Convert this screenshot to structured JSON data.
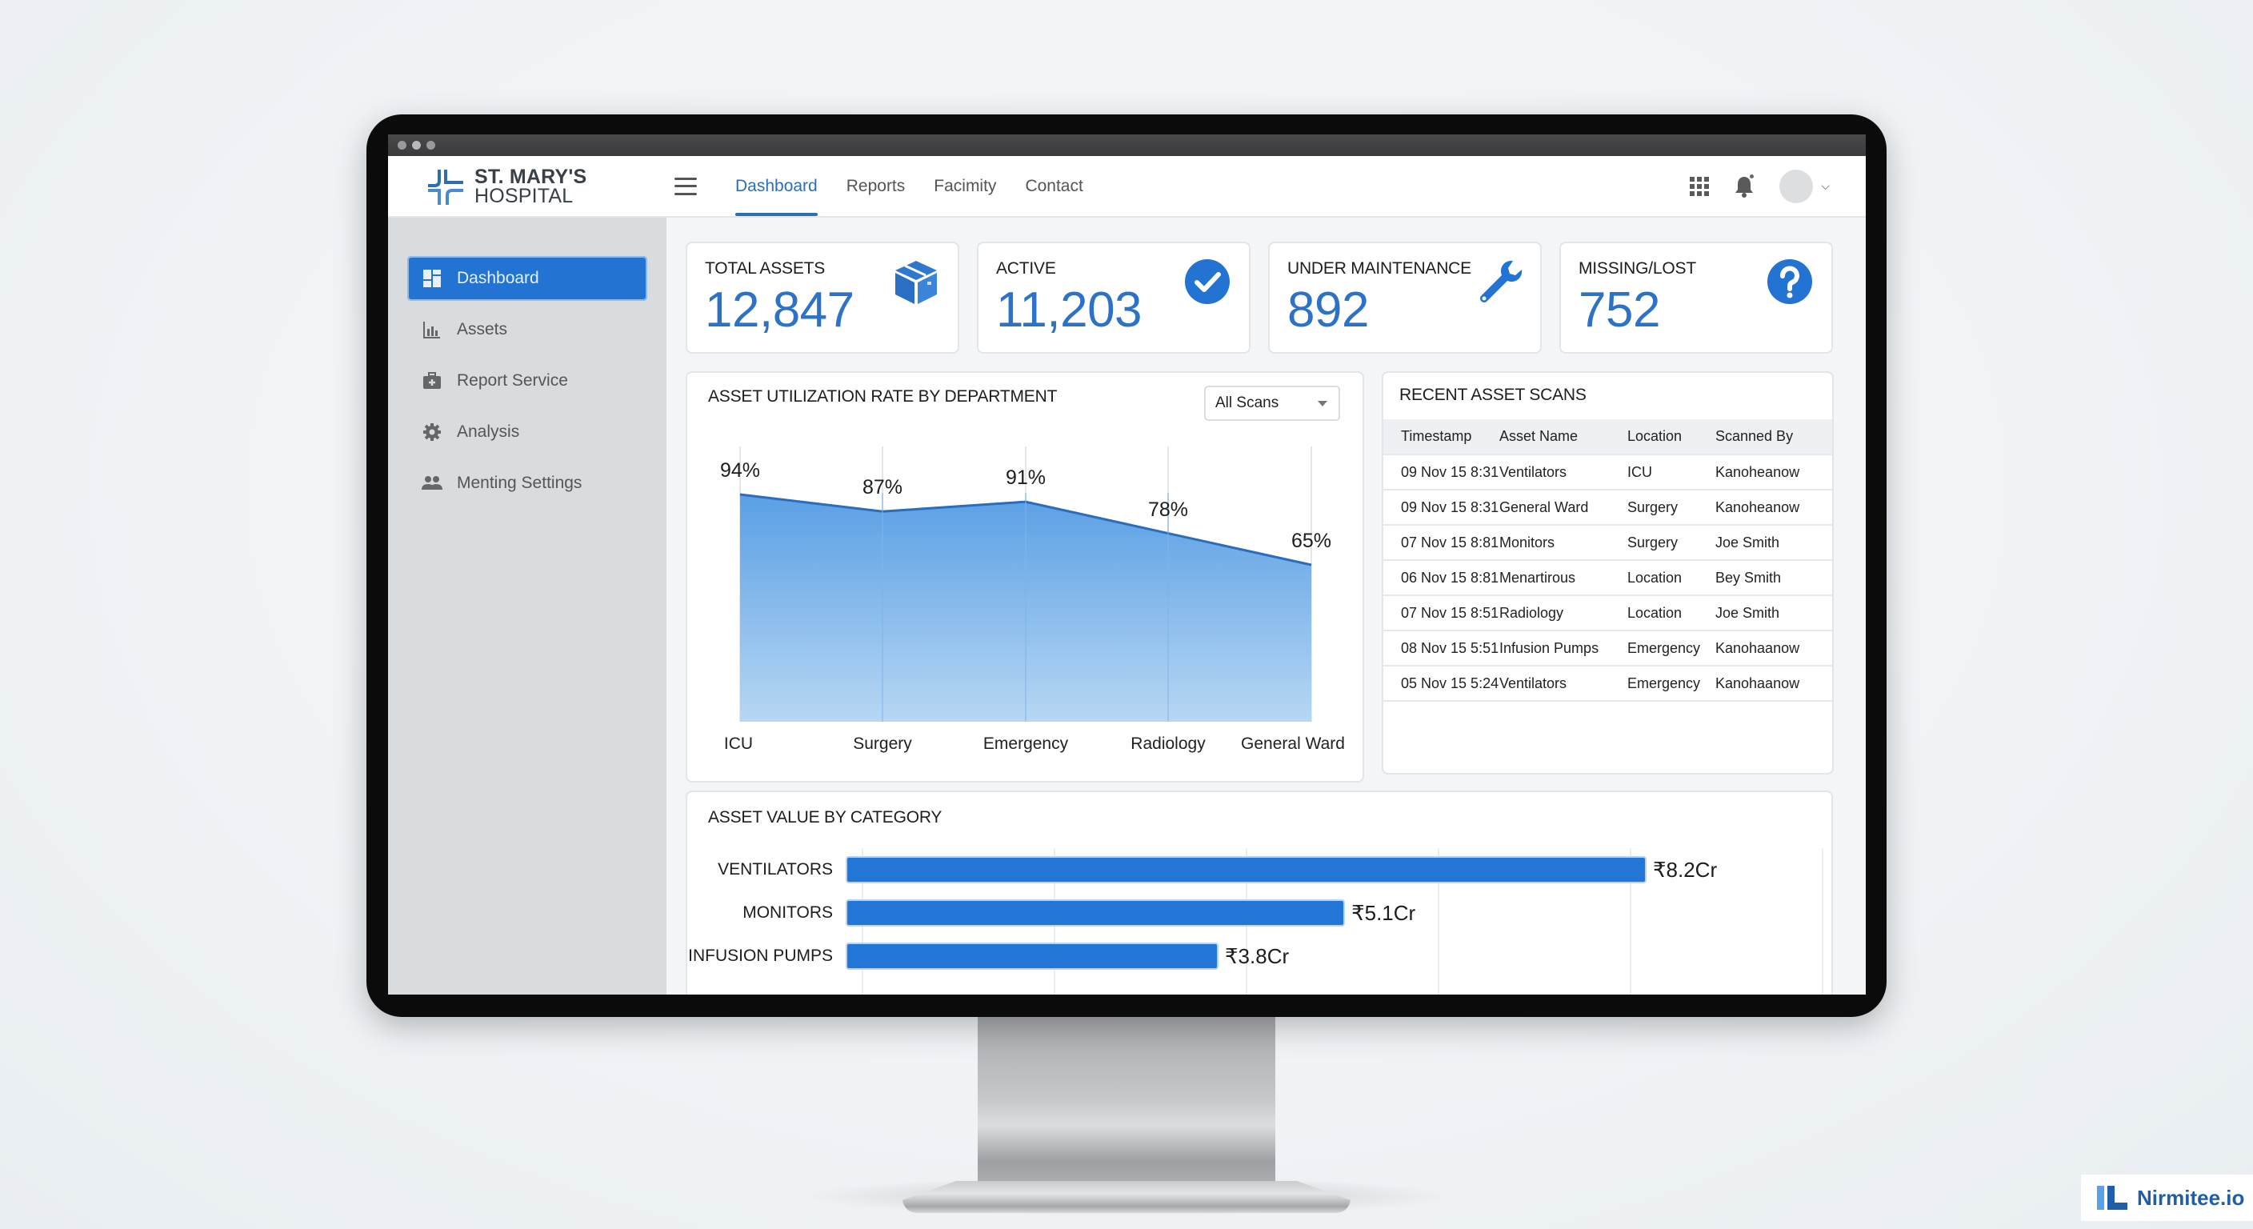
{
  "app": {
    "name_line1": "ST. MARY'S",
    "name_line2": "HOSPITAL",
    "accent_color": "#2273d2"
  },
  "header": {
    "nav": [
      {
        "label": "Dashboard",
        "active": true
      },
      {
        "label": "Reports",
        "active": false
      },
      {
        "label": "Facimity",
        "active": false
      },
      {
        "label": "Contact",
        "active": false
      }
    ],
    "icons": [
      "menu-icon",
      "apps-grid-icon",
      "bell-icon",
      "avatar",
      "chevron-down-icon"
    ]
  },
  "sidebar": {
    "items": [
      {
        "label": "Dashboard",
        "icon": "dashboard-icon",
        "active": true
      },
      {
        "label": "Assets",
        "icon": "bar-chart-icon",
        "active": false
      },
      {
        "label": "Report Service",
        "icon": "medical-kit-icon",
        "active": false
      },
      {
        "label": "Analysis",
        "icon": "gear-icon",
        "active": false
      },
      {
        "label": "Menting Settings",
        "icon": "people-icon",
        "active": false
      }
    ]
  },
  "kpis": [
    {
      "label": "TOTAL ASSETS",
      "value": "12,847",
      "icon": "box-icon"
    },
    {
      "label": "ACTIVE",
      "value": "11,203",
      "icon": "check-circle-icon"
    },
    {
      "label": "UNDER MAINTENANCE",
      "value": "892",
      "icon": "wrench-icon"
    },
    {
      "label": "MISSING/LOST",
      "value": "752",
      "icon": "question-circle-icon"
    }
  ],
  "utilization": {
    "title": "ASSET UTILIZATION RATE BY DEPARTMENT",
    "filter": {
      "selected": "All Scans"
    }
  },
  "recent_scans": {
    "title": "RECENT ASSET SCANS",
    "columns": [
      "Timestamp",
      "Asset Name",
      "Location",
      "Scanned By"
    ],
    "rows": [
      [
        "09 Nov 15 8:31",
        "Ventilators",
        "ICU",
        "Kanoheanow"
      ],
      [
        "09 Nov 15 8:31",
        "General Ward",
        "Surgery",
        "Kanoheanow"
      ],
      [
        "07 Nov 15 8:81",
        "Monitors",
        "Surgery",
        "Joe Smith"
      ],
      [
        "06 Nov 15 8:81",
        "Menartirous",
        "Location",
        "Bey Smith"
      ],
      [
        "07 Nov 15 8:51",
        "Radiology",
        "Location",
        "Joe Smith"
      ],
      [
        "08 Nov 15 5:51",
        "Infusion Pumps",
        "Emergency",
        "Kanohaanow"
      ],
      [
        "05 Nov 15 5:24",
        "Ventilators",
        "Emergency",
        "Kanohaanow"
      ]
    ]
  },
  "asset_value": {
    "title": "ASSET VALUE BY CATEGORY"
  },
  "chart_data": [
    {
      "type": "area",
      "title": "ASSET UTILIZATION RATE BY DEPARTMENT",
      "categories": [
        "ICU",
        "Surgery",
        "Emergency",
        "Radiology",
        "General Ward"
      ],
      "values": [
        94,
        87,
        91,
        78,
        65
      ],
      "value_labels": [
        "94%",
        "87%",
        "91%",
        "78%",
        "65%"
      ],
      "xlabel": "",
      "ylabel": "",
      "ylim": [
        0,
        100
      ],
      "grid": "vertical",
      "fill_color": "#5ea3e6",
      "line_color": "#2a6dba"
    },
    {
      "type": "bar",
      "orientation": "horizontal",
      "title": "ASSET VALUE BY CATEGORY",
      "categories": [
        "VENTILATORS",
        "MONITORS",
        "INFUSION PUMPS"
      ],
      "values": [
        8.2,
        5.1,
        3.8
      ],
      "value_labels": [
        "₹8.2Cr",
        "₹5.1Cr",
        "₹3.8Cr"
      ],
      "unit": "₹ Crore",
      "bar_color": "#2176d6",
      "grid": "vertical"
    }
  ],
  "watermark": {
    "text": "Nirmitee.io"
  }
}
